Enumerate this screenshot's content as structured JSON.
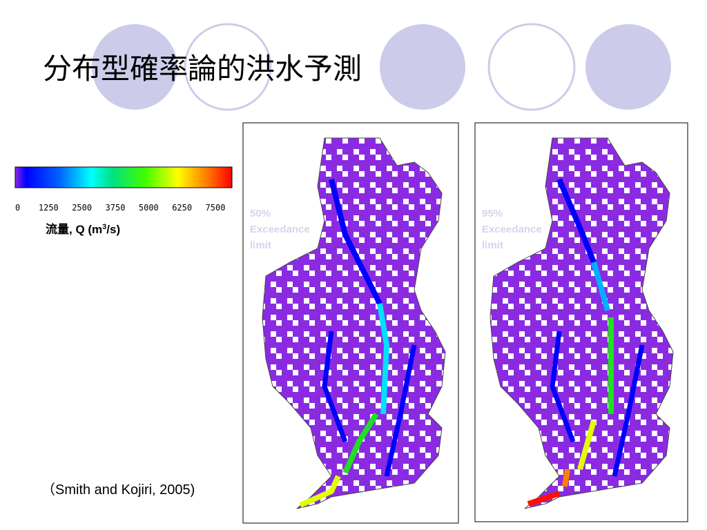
{
  "title": "分布型確率論的洪水予測",
  "colorbar": {
    "ticks": [
      "0",
      "1250",
      "2500",
      "3750",
      "5000",
      "6250",
      "7500"
    ],
    "label": {
      "main": "流量, Q (m",
      "sup": "3",
      "end": "/s)"
    }
  },
  "panels": [
    {
      "label": [
        "50%",
        "Exceedance",
        "limit"
      ]
    },
    {
      "label": [
        "95%",
        "Exceedance",
        "limit"
      ]
    }
  ],
  "citation": "（Smith and Kojiri, 2005)"
}
